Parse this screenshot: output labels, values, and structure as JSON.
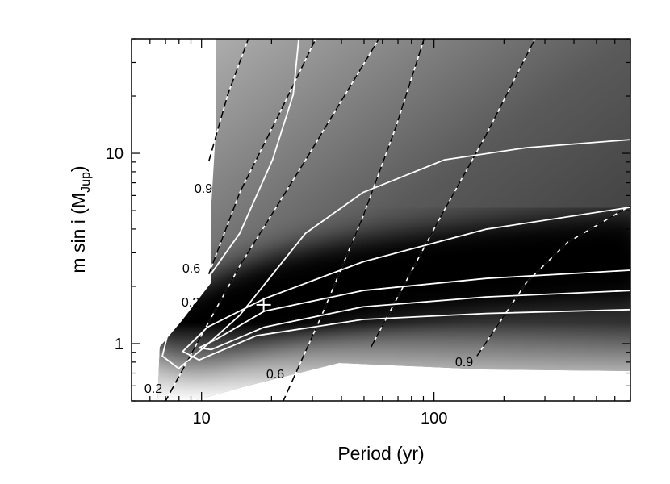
{
  "chart_data": {
    "type": "contour",
    "xlabel": "Period (yr)",
    "ylabel": {
      "text": "m sin i (M",
      "sub": "Jup",
      "tail": ")"
    },
    "xscale": "log",
    "yscale": "log",
    "xlim": [
      5,
      700
    ],
    "ylim": [
      0.5,
      40
    ],
    "xticks": [
      10,
      100
    ],
    "yticks": [
      1,
      10
    ],
    "xminorticks": [
      5,
      6,
      7,
      8,
      9,
      20,
      30,
      40,
      50,
      60,
      70,
      80,
      90,
      200,
      300,
      400,
      500,
      600,
      700
    ],
    "yminorticks": [
      0.5,
      0.6,
      0.7,
      0.8,
      0.9,
      2,
      3,
      4,
      5,
      6,
      7,
      8,
      9,
      20,
      30,
      40
    ],
    "solid_contours": [
      {
        "x": [
          26.2,
          24.8,
          20.2,
          14.6,
          9.76,
          7.35,
          6.78,
          7.97,
          10.2,
          14.6,
          28.0,
          49.4,
          111,
          250,
          700
        ],
        "y": [
          40,
          20.4,
          9.24,
          3.8,
          1.9,
          1.28,
          0.86,
          0.74,
          0.95,
          1.41,
          3.8,
          6.22,
          9.24,
          10.7,
          11.8
        ]
      },
      {
        "x": [
          700,
          167,
          49.4,
          18.6,
          10.6,
          8.3,
          9.76,
          17.2,
          49.4,
          167,
          700
        ],
        "y": [
          5.21,
          3.99,
          2.69,
          1.72,
          1.22,
          0.91,
          0.82,
          1.1,
          1.34,
          1.44,
          1.51
        ]
      },
      {
        "x": [
          700,
          167,
          49.4,
          18.6,
          11.5,
          9.76,
          11.0,
          18.6,
          49.4,
          167,
          700
        ],
        "y": [
          2.43,
          2.2,
          1.9,
          1.48,
          1.05,
          0.95,
          0.93,
          1.22,
          1.56,
          1.76,
          1.9
        ]
      }
    ],
    "dashed_contours": [
      {
        "x": [
          10.75,
          12.96,
          15.9
        ],
        "y": [
          9.07,
          20.3,
          40
        ]
      },
      {
        "x": [
          10.75,
          14.6,
          21.9,
          31.0
        ],
        "y": [
          2.32,
          6.22,
          16.7,
          40
        ]
      },
      {
        "x": [
          6.94,
          10.2,
          14.6,
          28,
          58
        ],
        "y": [
          0.49,
          1.16,
          2.56,
          9.2,
          40
        ]
      },
      {
        "x": [
          22.3,
          32.9,
          49.4,
          68.5,
          90.7
        ],
        "y": [
          0.49,
          1.41,
          4.63,
          13.7,
          40
        ]
      },
      {
        "x": [
          53.6,
          102,
          167,
          272
        ],
        "y": [
          0.96,
          4.19,
          12.4,
          40
        ]
      },
      {
        "x": [
          153,
          250,
          375,
          700
        ],
        "y": [
          0.86,
          2.1,
          3.4,
          5.3
        ]
      }
    ],
    "best_fit": {
      "x": 18.5,
      "y": 1.6
    },
    "contour_labels": [
      "0.9",
      "0.6",
      "0.2",
      "0.2",
      "0.6",
      "0.9"
    ]
  }
}
